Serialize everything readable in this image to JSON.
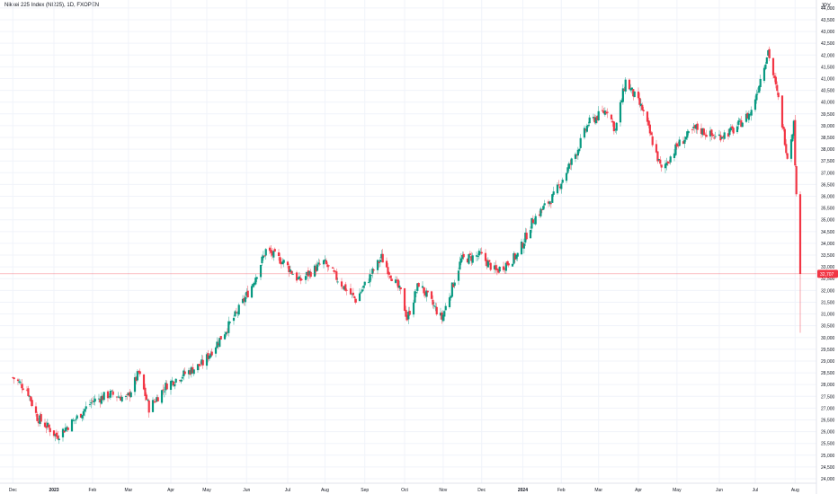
{
  "header": {
    "title": "Nikkei 225 Index (NI225), 1D, FXOPEN",
    "currency": "JPY"
  },
  "colors": {
    "up": "#089981",
    "down": "#f23645",
    "grid": "#f0f3fa",
    "axis_line": "#e0e3eb",
    "last_price_line": "#f23645"
  },
  "chart_data": {
    "type": "candlestick",
    "title": "Nikkei 225 Index (NI225), 1D, FXOPEN",
    "currency": "JPY",
    "y_ticks": [
      24000,
      24500,
      25000,
      25500,
      26000,
      26500,
      27000,
      27500,
      28000,
      28500,
      29000,
      29500,
      30000,
      30500,
      31000,
      31500,
      32000,
      32500,
      33000,
      33500,
      34000,
      34500,
      35000,
      35500,
      36000,
      36500,
      37000,
      37500,
      38000,
      38500,
      39000,
      39500,
      40000,
      40500,
      41000,
      41500,
      42000,
      42500,
      43000,
      43500,
      44000
    ],
    "y_tick_labels": [
      "24,000",
      "24,500",
      "25,000",
      "25,500",
      "26,000",
      "26,500",
      "27,000",
      "27,500",
      "28,000",
      "28,500",
      "29,000",
      "29,500",
      "30,000",
      "30,500",
      "31,000",
      "31,500",
      "32,000",
      "32,500",
      "33,000",
      "33,500",
      "34,000",
      "34,500",
      "35,000",
      "35,500",
      "36,000",
      "36,500",
      "37,000",
      "37,500",
      "38,000",
      "38,500",
      "39,000",
      "39,500",
      "40,000",
      "40,500",
      "41,000",
      "41,500",
      "42,000",
      "42,500",
      "43,000",
      "43,500",
      "44,000"
    ],
    "ylim": [
      24000,
      44300
    ],
    "x_labels": [
      "Dec",
      "2023",
      "Feb",
      "Mar",
      "Apr",
      "May",
      "Jun",
      "Jul",
      "Aug",
      "Sep",
      "Oct",
      "Nov",
      "Dec",
      "2024",
      "Feb",
      "Mar",
      "Apr",
      "May",
      "Jun",
      "Jul",
      "Aug"
    ],
    "last_price": 32707,
    "last_price_label": "32,707",
    "series": [
      {
        "date": "2022-12-01",
        "close": 28300
      },
      {
        "date": "2022-12-12",
        "close": 27800
      },
      {
        "date": "2022-12-20",
        "close": 26600
      },
      {
        "date": "2022-12-30",
        "close": 26100
      },
      {
        "date": "2023-01-04",
        "close": 25800
      },
      {
        "date": "2023-01-20",
        "close": 26600
      },
      {
        "date": "2023-02-01",
        "close": 27300
      },
      {
        "date": "2023-02-15",
        "close": 27600
      },
      {
        "date": "2023-02-28",
        "close": 27400
      },
      {
        "date": "2023-03-09",
        "close": 28500
      },
      {
        "date": "2023-03-17",
        "close": 27000
      },
      {
        "date": "2023-03-31",
        "close": 28000
      },
      {
        "date": "2023-04-15",
        "close": 28500
      },
      {
        "date": "2023-04-28",
        "close": 28900
      },
      {
        "date": "2023-05-12",
        "close": 30000
      },
      {
        "date": "2023-05-24",
        "close": 31000
      },
      {
        "date": "2023-06-05",
        "close": 32200
      },
      {
        "date": "2023-06-16",
        "close": 33700
      },
      {
        "date": "2023-06-30",
        "close": 33200
      },
      {
        "date": "2023-07-12",
        "close": 32400
      },
      {
        "date": "2023-07-31",
        "close": 33200
      },
      {
        "date": "2023-08-15",
        "close": 32200
      },
      {
        "date": "2023-08-25",
        "close": 31600
      },
      {
        "date": "2023-09-14",
        "close": 33400
      },
      {
        "date": "2023-09-29",
        "close": 31900
      },
      {
        "date": "2023-10-04",
        "close": 30800
      },
      {
        "date": "2023-10-13",
        "close": 32300
      },
      {
        "date": "2023-10-31",
        "close": 30800
      },
      {
        "date": "2023-11-15",
        "close": 33300
      },
      {
        "date": "2023-11-30",
        "close": 33500
      },
      {
        "date": "2023-12-12",
        "close": 32800
      },
      {
        "date": "2023-12-29",
        "close": 33500
      },
      {
        "date": "2024-01-10",
        "close": 35000
      },
      {
        "date": "2024-01-26",
        "close": 36000
      },
      {
        "date": "2024-02-13",
        "close": 37900
      },
      {
        "date": "2024-02-22",
        "close": 39100
      },
      {
        "date": "2024-03-08",
        "close": 39700
      },
      {
        "date": "2024-03-14",
        "close": 38800
      },
      {
        "date": "2024-03-22",
        "close": 40900
      },
      {
        "date": "2024-04-04",
        "close": 39700
      },
      {
        "date": "2024-04-19",
        "close": 37100
      },
      {
        "date": "2024-05-02",
        "close": 38200
      },
      {
        "date": "2024-05-16",
        "close": 38900
      },
      {
        "date": "2024-05-31",
        "close": 38500
      },
      {
        "date": "2024-06-14",
        "close": 38800
      },
      {
        "date": "2024-06-28",
        "close": 39600
      },
      {
        "date": "2024-07-11",
        "close": 42200
      },
      {
        "date": "2024-07-19",
        "close": 40100
      },
      {
        "date": "2024-07-26",
        "close": 37700
      },
      {
        "date": "2024-07-31",
        "close": 39100
      },
      {
        "date": "2024-08-02",
        "close": 35900
      },
      {
        "date": "2024-08-05",
        "close": 32700
      }
    ]
  }
}
